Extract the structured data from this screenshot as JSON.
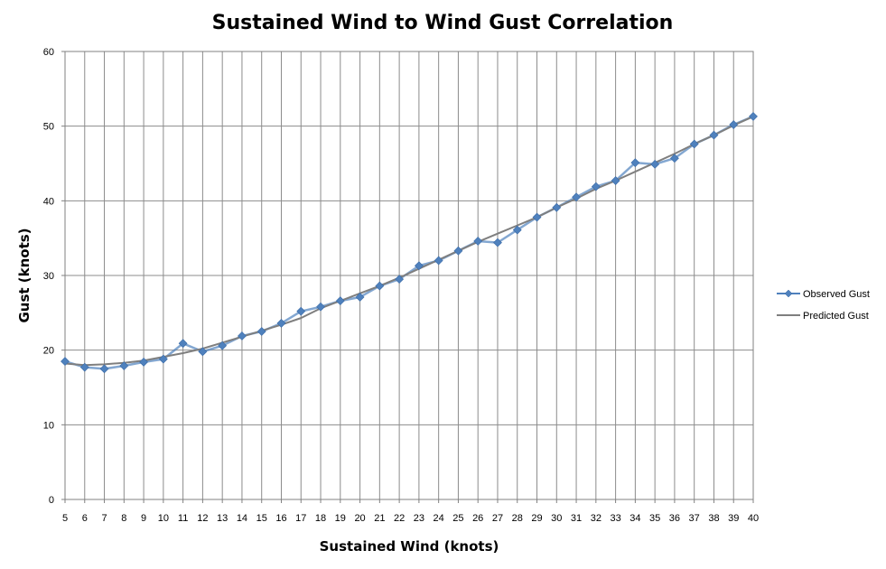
{
  "chart_data": {
    "type": "line",
    "title": "Sustained Wind to Wind Gust Correlation",
    "xlabel": "Sustained Wind (knots)",
    "ylabel": "Gust (knots)",
    "categories": [
      5,
      6,
      7,
      8,
      9,
      10,
      11,
      12,
      13,
      14,
      15,
      16,
      17,
      18,
      19,
      20,
      21,
      22,
      23,
      24,
      25,
      26,
      27,
      28,
      29,
      30,
      31,
      32,
      33,
      34,
      35,
      36,
      37,
      38,
      39,
      40
    ],
    "ylim": [
      0,
      60
    ],
    "yticks": [
      0,
      10,
      20,
      30,
      40,
      50,
      60
    ],
    "grid": true,
    "legend_position": "right",
    "series": [
      {
        "name": "Observed Gust",
        "color": "#4f81bd",
        "marker": "diamond",
        "values": [
          18.5,
          17.7,
          17.5,
          17.9,
          18.4,
          18.8,
          20.9,
          19.8,
          20.6,
          21.9,
          22.5,
          23.6,
          25.2,
          25.8,
          26.6,
          27.1,
          28.6,
          29.5,
          31.3,
          32.0,
          33.3,
          34.6,
          34.4,
          36.1,
          37.8,
          39.1,
          40.5,
          41.9,
          42.7,
          45.1,
          44.9,
          45.7,
          47.6,
          48.8,
          50.2,
          51.3
        ]
      },
      {
        "name": "Predicted Gust",
        "color": "#7f7f7f",
        "marker": "none",
        "values": [
          18.2,
          18.0,
          18.1,
          18.3,
          18.6,
          19.1,
          19.6,
          20.2,
          21.0,
          21.8,
          22.6,
          23.4,
          24.3,
          25.6,
          26.6,
          27.6,
          28.6,
          29.7,
          30.9,
          32.1,
          33.3,
          34.5,
          35.6,
          36.7,
          37.8,
          39.1,
          40.3,
          41.6,
          42.7,
          43.9,
          45.1,
          46.3,
          47.6,
          48.8,
          50.1,
          51.3
        ]
      }
    ]
  }
}
